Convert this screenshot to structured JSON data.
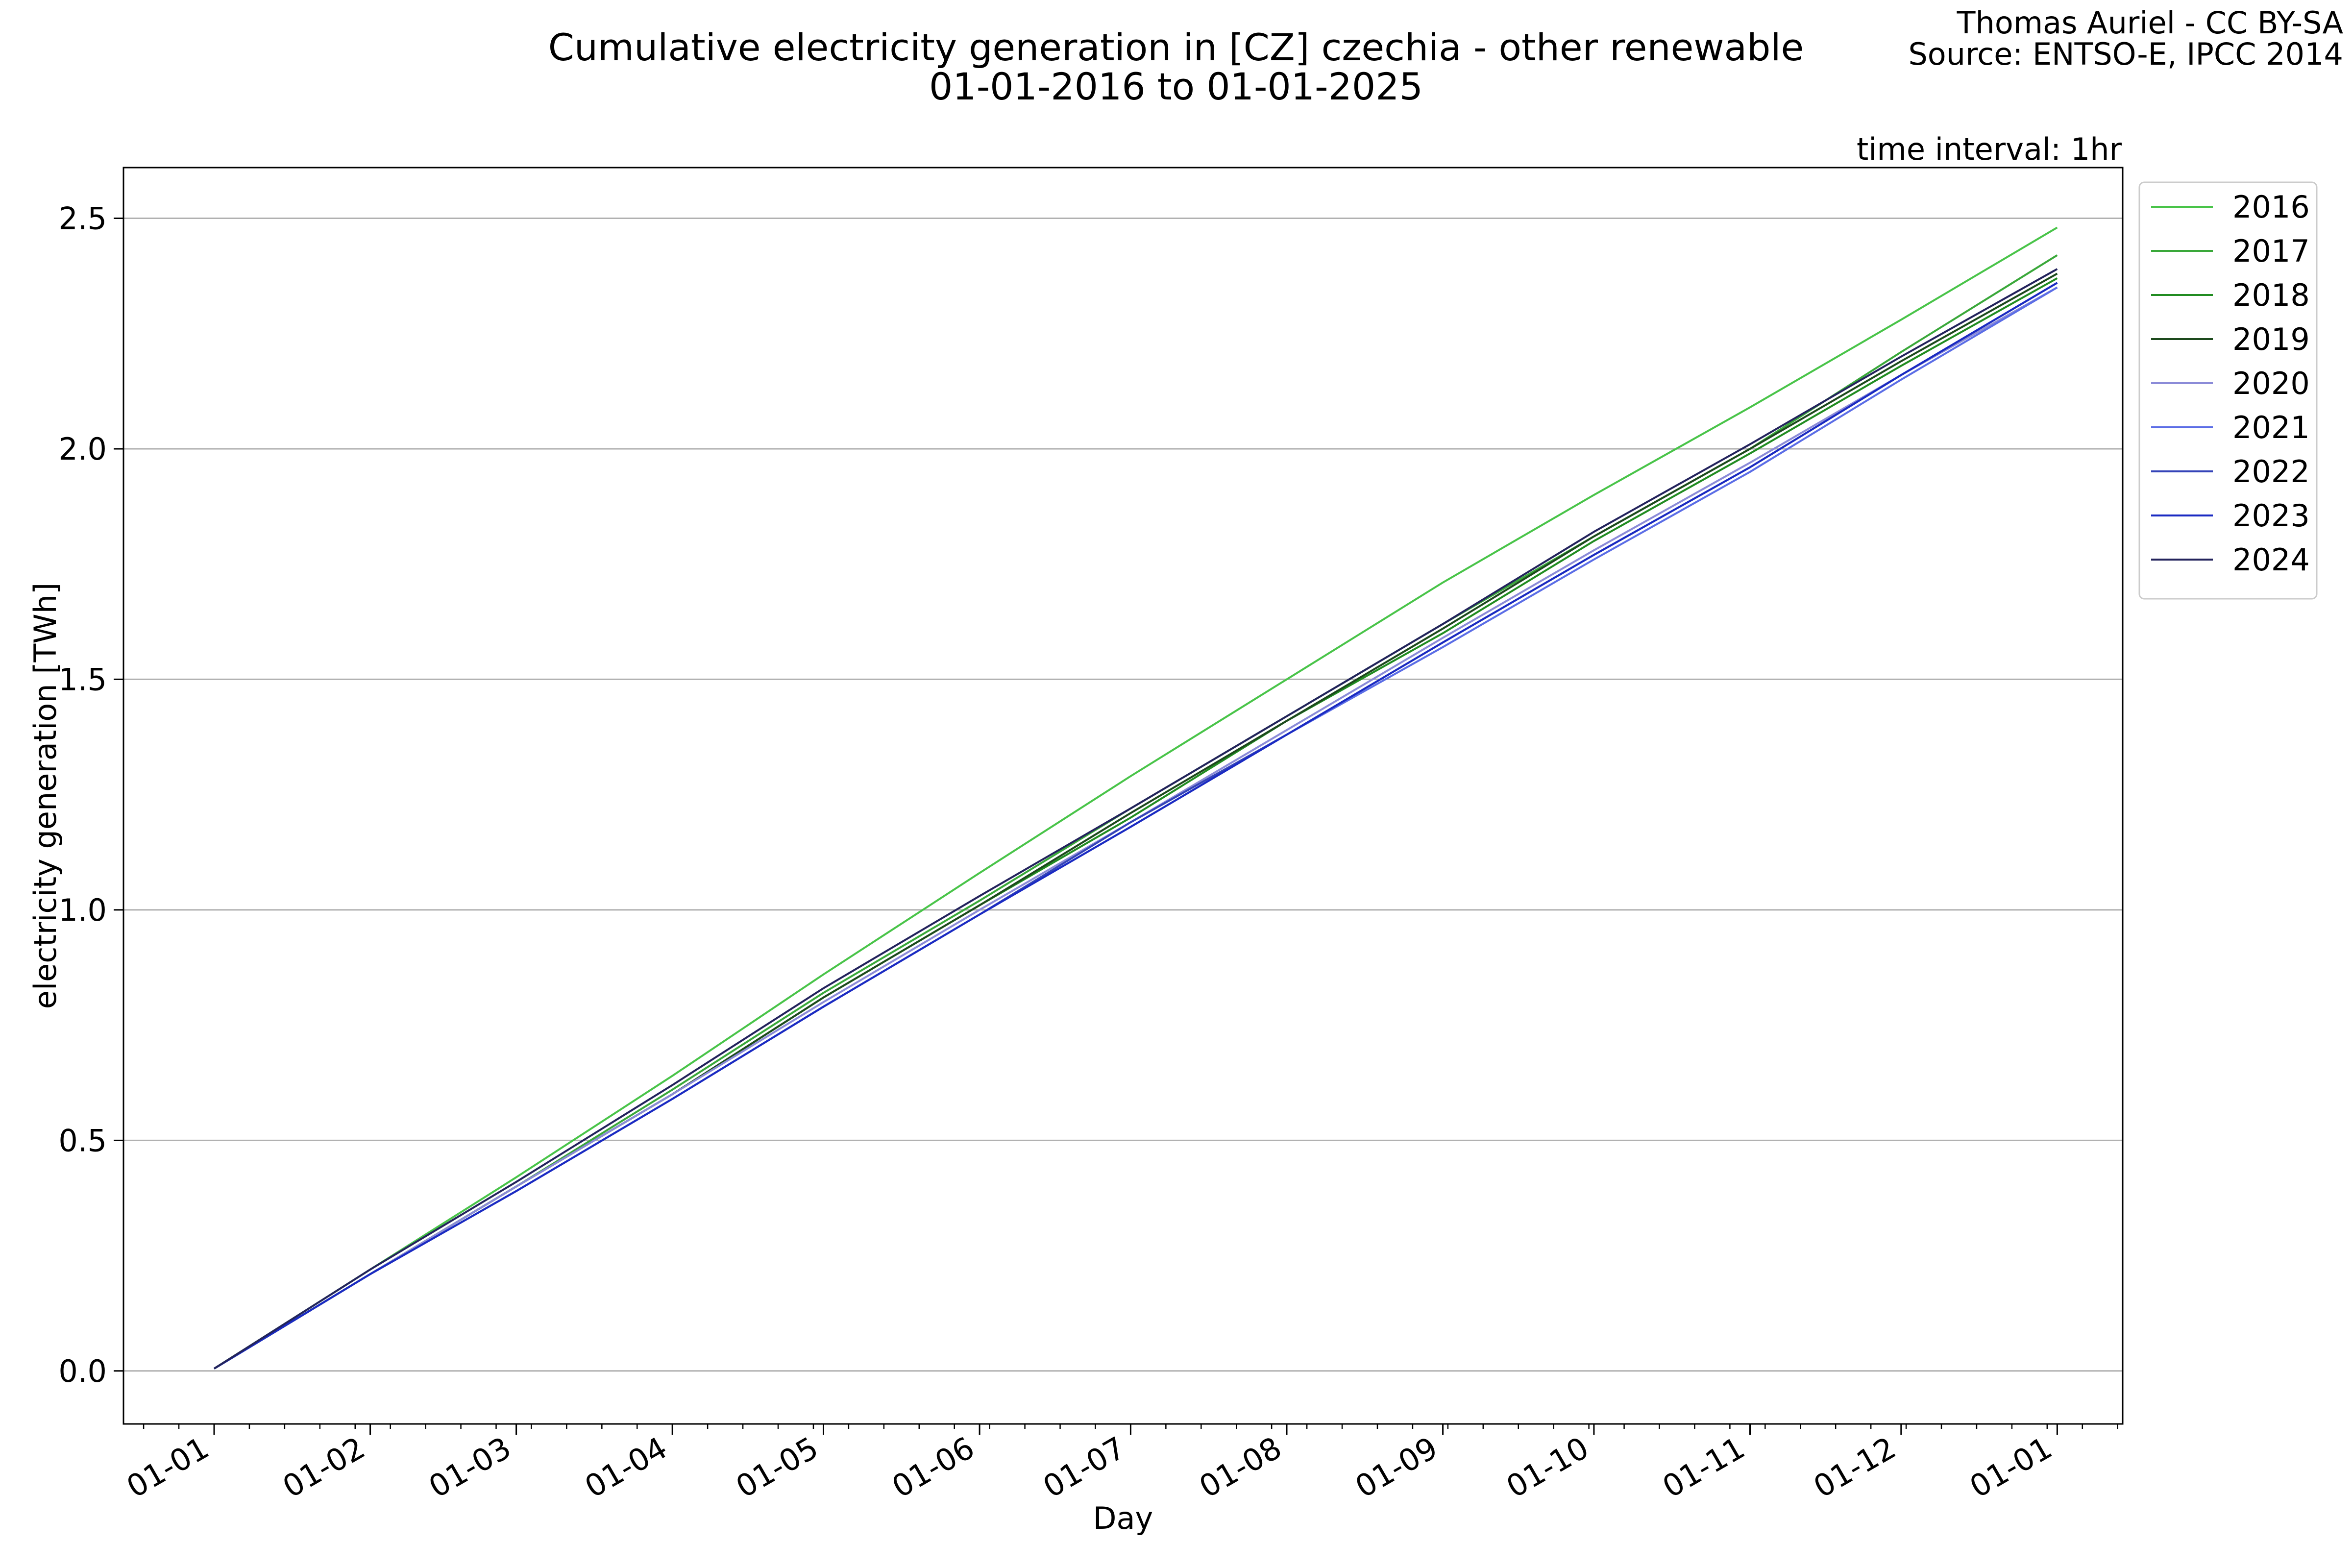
{
  "header": {
    "title_line1": "Cumulative electricity generation in [CZ] czechia - other renewable",
    "title_line2": "01-01-2016 to 01-01-2025",
    "credit_line1": "Thomas Auriel - CC BY-SA",
    "credit_line2": "Source: ENTSO-E, IPCC 2014",
    "interval": "time interval: 1hr"
  },
  "chart_data": {
    "type": "line",
    "xlabel": "Day",
    "ylabel": "electricity generation [TWh]",
    "xlim": [
      -18,
      379
    ],
    "ylim": [
      -0.115,
      2.61
    ],
    "x_ticks": [
      {
        "day": 0,
        "label": "01-01"
      },
      {
        "day": 31,
        "label": "01-02"
      },
      {
        "day": 60,
        "label": "01-03"
      },
      {
        "day": 91,
        "label": "01-04"
      },
      {
        "day": 121,
        "label": "01-05"
      },
      {
        "day": 152,
        "label": "01-06"
      },
      {
        "day": 182,
        "label": "01-07"
      },
      {
        "day": 213,
        "label": "01-08"
      },
      {
        "day": 244,
        "label": "01-09"
      },
      {
        "day": 274,
        "label": "01-10"
      },
      {
        "day": 305,
        "label": "01-11"
      },
      {
        "day": 335,
        "label": "01-12"
      },
      {
        "day": 366,
        "label": "01-01"
      }
    ],
    "y_ticks": [
      0.0,
      0.5,
      1.0,
      1.5,
      2.0,
      2.5
    ],
    "y_tick_labels": [
      "0.0",
      "0.5",
      "1.0",
      "1.5",
      "2.0",
      "2.5"
    ],
    "grid": "horizontal",
    "legend_position": "outside-top-right",
    "series": [
      {
        "name": "2016",
        "color": "#49c449",
        "x": [
          0,
          31,
          60,
          91,
          121,
          152,
          182,
          213,
          244,
          274,
          305,
          335,
          366
        ],
        "y": [
          0.005,
          0.22,
          0.42,
          0.64,
          0.86,
          1.08,
          1.29,
          1.5,
          1.71,
          1.9,
          2.09,
          2.28,
          2.48
        ]
      },
      {
        "name": "2017",
        "color": "#3aa83a",
        "x": [
          0,
          31,
          60,
          91,
          121,
          152,
          182,
          213,
          244,
          274,
          305,
          335,
          366
        ],
        "y": [
          0.005,
          0.21,
          0.4,
          0.61,
          0.82,
          1.02,
          1.22,
          1.42,
          1.62,
          1.81,
          2.0,
          2.21,
          2.42
        ]
      },
      {
        "name": "2018",
        "color": "#218c21",
        "x": [
          0,
          31,
          60,
          91,
          121,
          152,
          182,
          213,
          244,
          274,
          305,
          335,
          366
        ],
        "y": [
          0.005,
          0.21,
          0.4,
          0.6,
          0.81,
          1.01,
          1.2,
          1.41,
          1.6,
          1.8,
          1.99,
          2.18,
          2.37
        ]
      },
      {
        "name": "2019",
        "color": "#1d4a1d",
        "x": [
          0,
          31,
          60,
          91,
          121,
          152,
          182,
          213,
          244,
          274,
          305,
          335,
          366
        ],
        "y": [
          0.005,
          0.21,
          0.4,
          0.6,
          0.81,
          1.01,
          1.21,
          1.41,
          1.61,
          1.81,
          2.0,
          2.19,
          2.38
        ]
      },
      {
        "name": "2020",
        "color": "#8b8bd8",
        "x": [
          0,
          31,
          60,
          91,
          121,
          152,
          182,
          213,
          244,
          274,
          305,
          335,
          366
        ],
        "y": [
          0.005,
          0.21,
          0.4,
          0.6,
          0.8,
          1.0,
          1.19,
          1.39,
          1.59,
          1.78,
          1.97,
          2.16,
          2.35
        ]
      },
      {
        "name": "2021",
        "color": "#5b6de6",
        "x": [
          0,
          31,
          60,
          91,
          121,
          152,
          182,
          213,
          244,
          274,
          305,
          335,
          366
        ],
        "y": [
          0.005,
          0.21,
          0.39,
          0.59,
          0.79,
          0.99,
          1.18,
          1.38,
          1.57,
          1.76,
          1.95,
          2.15,
          2.35
        ]
      },
      {
        "name": "2022",
        "color": "#3443b8",
        "x": [
          0,
          31,
          60,
          91,
          121,
          152,
          182,
          213,
          244,
          274,
          305,
          335,
          366
        ],
        "y": [
          0.005,
          0.21,
          0.39,
          0.59,
          0.79,
          0.99,
          1.19,
          1.38,
          1.58,
          1.77,
          1.96,
          2.16,
          2.36
        ]
      },
      {
        "name": "2023",
        "color": "#1a2ac2",
        "x": [
          0,
          31,
          60,
          91,
          121,
          152,
          182,
          213,
          244,
          274,
          305,
          335,
          366
        ],
        "y": [
          0.005,
          0.21,
          0.39,
          0.59,
          0.79,
          0.99,
          1.18,
          1.38,
          1.58,
          1.77,
          1.96,
          2.16,
          2.36
        ]
      },
      {
        "name": "2024",
        "color": "#23235c",
        "x": [
          0,
          31,
          60,
          91,
          121,
          152,
          182,
          213,
          244,
          274,
          305,
          335,
          366
        ],
        "y": [
          0.005,
          0.22,
          0.41,
          0.62,
          0.83,
          1.03,
          1.22,
          1.42,
          1.62,
          1.82,
          2.01,
          2.2,
          2.39
        ]
      }
    ]
  }
}
